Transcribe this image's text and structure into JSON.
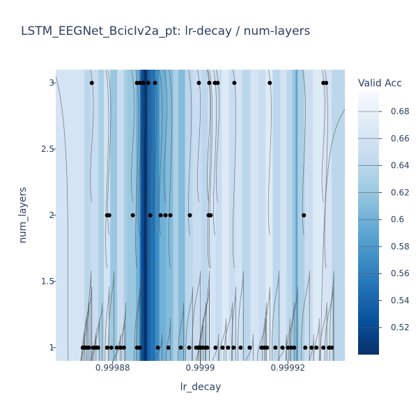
{
  "chart_data": {
    "type": "contour",
    "title": "LSTM_EEGNet_BcicIv2a_pt: lr-decay / num-layers",
    "xlabel": "lr_decay",
    "ylabel": "num_layers",
    "xlim": [
      0.999867,
      0.999933
    ],
    "ylim": [
      0.9,
      3.1
    ],
    "x_ticks": [
      0.99988,
      0.9999,
      0.99992
    ],
    "x_tick_labels": [
      "0.99988",
      "0.9999",
      "0.99992"
    ],
    "y_ticks": [
      1,
      1.5,
      2,
      2.5,
      3
    ],
    "y_tick_labels": [
      "1",
      "1.5",
      "2",
      "2.5",
      "3"
    ],
    "colorbar": {
      "title": "Valid Acc",
      "range": [
        0.5,
        0.695
      ],
      "ticks": [
        0.52,
        0.54,
        0.56,
        0.58,
        0.6,
        0.62,
        0.64,
        0.66,
        0.68
      ],
      "tick_labels": [
        "0.52",
        "0.54",
        "0.56",
        "0.58",
        "0.6",
        "0.62",
        "0.64",
        "0.66",
        "0.68"
      ],
      "colors": [
        "#08306b",
        "#08519c",
        "#2171b5",
        "#4292c6",
        "#6baed6",
        "#9ecae1",
        "#c6dbef",
        "#deebf7",
        "#f7fbff"
      ]
    },
    "trials": [
      {
        "x": 0.99987317,
        "y": 1
      },
      {
        "x": 0.99987349,
        "y": 1
      },
      {
        "x": 0.99987381,
        "y": 1
      },
      {
        "x": 0.99987429,
        "y": 1
      },
      {
        "x": 0.9998746,
        "y": 1
      },
      {
        "x": 0.99987556,
        "y": 1
      },
      {
        "x": 0.99987619,
        "y": 1
      },
      {
        "x": 0.99987667,
        "y": 1
      },
      {
        "x": 0.99987873,
        "y": 1
      },
      {
        "x": 0.99987968,
        "y": 1
      },
      {
        "x": 0.99988095,
        "y": 1
      },
      {
        "x": 0.99988175,
        "y": 1
      },
      {
        "x": 0.99988254,
        "y": 1
      },
      {
        "x": 0.99988556,
        "y": 1
      },
      {
        "x": 0.99988619,
        "y": 1
      },
      {
        "x": 0.99989032,
        "y": 1
      },
      {
        "x": 0.9998927,
        "y": 1
      },
      {
        "x": 0.99989556,
        "y": 1
      },
      {
        "x": 0.99989746,
        "y": 1
      },
      {
        "x": 0.99989905,
        "y": 1
      },
      {
        "x": 0.99989952,
        "y": 1
      },
      {
        "x": 0.9999,
        "y": 1
      },
      {
        "x": 0.99990048,
        "y": 1
      },
      {
        "x": 0.99990111,
        "y": 1
      },
      {
        "x": 0.99990159,
        "y": 1
      },
      {
        "x": 0.99990349,
        "y": 1
      },
      {
        "x": 0.99990508,
        "y": 1
      },
      {
        "x": 0.99990635,
        "y": 1
      },
      {
        "x": 0.99990762,
        "y": 1
      },
      {
        "x": 0.99990921,
        "y": 1
      },
      {
        "x": 0.99991127,
        "y": 1
      },
      {
        "x": 0.99991397,
        "y": 1
      },
      {
        "x": 0.9999146,
        "y": 1
      },
      {
        "x": 0.99991524,
        "y": 1
      },
      {
        "x": 0.99991714,
        "y": 1
      },
      {
        "x": 0.99991873,
        "y": 1
      },
      {
        "x": 0.99992,
        "y": 1
      },
      {
        "x": 0.99992079,
        "y": 1
      },
      {
        "x": 0.99992143,
        "y": 1
      },
      {
        "x": 0.99992397,
        "y": 1
      },
      {
        "x": 0.9999254,
        "y": 1
      },
      {
        "x": 0.99992651,
        "y": 1
      },
      {
        "x": 0.9999281,
        "y": 1
      },
      {
        "x": 0.99992937,
        "y": 1
      },
      {
        "x": 0.99993,
        "y": 1
      },
      {
        "x": 0.99987873,
        "y": 2
      },
      {
        "x": 0.99987921,
        "y": 2
      },
      {
        "x": 0.9998846,
        "y": 2
      },
      {
        "x": 0.99988857,
        "y": 2
      },
      {
        "x": 0.99989095,
        "y": 2
      },
      {
        "x": 0.99989206,
        "y": 2
      },
      {
        "x": 0.99989317,
        "y": 2
      },
      {
        "x": 0.99989762,
        "y": 2
      },
      {
        "x": 0.9999019,
        "y": 2
      },
      {
        "x": 0.99990238,
        "y": 2
      },
      {
        "x": 0.99992365,
        "y": 2
      },
      {
        "x": 0.99987524,
        "y": 3
      },
      {
        "x": 0.99988556,
        "y": 3
      },
      {
        "x": 0.99988619,
        "y": 3
      },
      {
        "x": 0.99988698,
        "y": 3
      },
      {
        "x": 0.9998881,
        "y": 3
      },
      {
        "x": 0.99988968,
        "y": 3
      },
      {
        "x": 0.99989968,
        "y": 3
      },
      {
        "x": 0.99990206,
        "y": 3
      },
      {
        "x": 0.99990333,
        "y": 3
      },
      {
        "x": 0.99990397,
        "y": 3
      },
      {
        "x": 0.99990778,
        "y": 3
      },
      {
        "x": 0.99991587,
        "y": 3
      },
      {
        "x": 0.9999281,
        "y": 3
      },
      {
        "x": 0.99992873,
        "y": 3
      }
    ],
    "column_values": [
      {
        "x": 0.999867,
        "v": 0.66
      },
      {
        "x": 0.9998735,
        "v": 0.64
      },
      {
        "x": 0.999875,
        "v": 0.65
      },
      {
        "x": 0.99987673,
        "v": 0.63
      },
      {
        "x": 0.999878,
        "v": 0.66
      },
      {
        "x": 0.99987943,
        "v": 0.62
      },
      {
        "x": 0.999881,
        "v": 0.65
      },
      {
        "x": 0.9998825,
        "v": 0.63
      },
      {
        "x": 0.99988325,
        "v": 0.62
      },
      {
        "x": 0.99988419,
        "v": 0.62
      },
      {
        "x": 0.99988532,
        "v": 0.6
      },
      {
        "x": 0.9998862,
        "v": 0.55
      },
      {
        "x": 0.99988651,
        "v": 0.52
      },
      {
        "x": 0.99988714,
        "v": 0.5
      },
      {
        "x": 0.99988763,
        "v": 0.51
      },
      {
        "x": 0.99988794,
        "v": 0.54
      },
      {
        "x": 0.99988857,
        "v": 0.55
      },
      {
        "x": 0.99988968,
        "v": 0.57
      },
      {
        "x": 0.99989063,
        "v": 0.6
      },
      {
        "x": 0.99989222,
        "v": 0.61
      },
      {
        "x": 0.99989381,
        "v": 0.63
      },
      {
        "x": 0.999895,
        "v": 0.61
      },
      {
        "x": 0.99989651,
        "v": 0.64
      },
      {
        "x": 0.99989825,
        "v": 0.65
      },
      {
        "x": 0.99990032,
        "v": 0.64
      },
      {
        "x": 0.99990175,
        "v": 0.66
      },
      {
        "x": 0.99990349,
        "v": 0.65
      },
      {
        "x": 0.99990492,
        "v": 0.67
      },
      {
        "x": 0.99990651,
        "v": 0.65
      },
      {
        "x": 0.999908,
        "v": 0.66
      },
      {
        "x": 0.99990952,
        "v": 0.64
      },
      {
        "x": 0.99991143,
        "v": 0.66
      },
      {
        "x": 0.99991333,
        "v": 0.65
      },
      {
        "x": 0.99991492,
        "v": 0.67
      },
      {
        "x": 0.99991651,
        "v": 0.64
      },
      {
        "x": 0.99991825,
        "v": 0.66
      },
      {
        "x": 0.99991968,
        "v": 0.64
      },
      {
        "x": 0.99992095,
        "v": 0.62
      },
      {
        "x": 0.99992175,
        "v": 0.59
      },
      {
        "x": 0.99992222,
        "v": 0.63
      },
      {
        "x": 0.99992381,
        "v": 0.65
      },
      {
        "x": 0.99992571,
        "v": 0.67
      },
      {
        "x": 0.999928,
        "v": 0.66
      },
      {
        "x": 0.99993,
        "v": 0.64
      },
      {
        "x": 0.999933,
        "v": 0.66
      }
    ],
    "grid": false
  }
}
